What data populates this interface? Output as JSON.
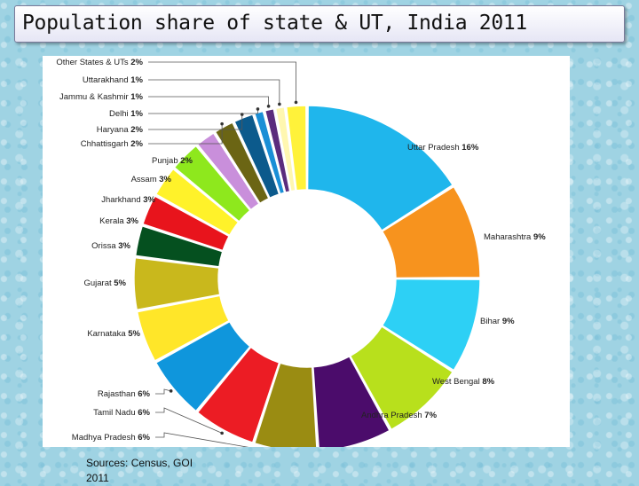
{
  "title": "Population share of state & UT, India 2011",
  "source": "Sources: Census, GOI 2011",
  "chart_data": {
    "type": "pie",
    "variant": "donut",
    "title": "Population share of state & UT, India 2011",
    "unit": "%",
    "legend": "none",
    "slices": [
      {
        "label": "Uttar Pradesh",
        "value": 16,
        "color": "#1fb6ec"
      },
      {
        "label": "Maharashtra",
        "value": 9,
        "color": "#f7931e"
      },
      {
        "label": "Bihar",
        "value": 9,
        "color": "#2dd0f5"
      },
      {
        "label": "West Bengal",
        "value": 8,
        "color": "#b8e01c"
      },
      {
        "label": "Andhra Pradesh",
        "value": 7,
        "color": "#4b0c6b"
      },
      {
        "label": "Madhya Pradesh",
        "value": 6,
        "color": "#9a8c12"
      },
      {
        "label": "Tamil Nadu",
        "value": 6,
        "color": "#ec1c24"
      },
      {
        "label": "Rajasthan",
        "value": 6,
        "color": "#0f96dc"
      },
      {
        "label": "Karnataka",
        "value": 5,
        "color": "#ffe629"
      },
      {
        "label": "Gujarat",
        "value": 5,
        "color": "#c9b81c"
      },
      {
        "label": "Orissa",
        "value": 3,
        "color": "#05501f"
      },
      {
        "label": "Kerala",
        "value": 3,
        "color": "#e8141c"
      },
      {
        "label": "Jharkhand",
        "value": 3,
        "color": "#fff22a"
      },
      {
        "label": "Assam",
        "value": 3,
        "color": "#8ee81d"
      },
      {
        "label": "Punjab",
        "value": 2,
        "color": "#c98fdb"
      },
      {
        "label": "Chhattisgarh",
        "value": 2,
        "color": "#6b6514"
      },
      {
        "label": "Haryana",
        "value": 2,
        "color": "#0c5a8c"
      },
      {
        "label": "Delhi",
        "value": 1,
        "color": "#1a8fd6"
      },
      {
        "label": "Jammu & Kashmir",
        "value": 1,
        "color": "#5b2c7d"
      },
      {
        "label": "Uttarakhand",
        "value": 1,
        "color": "#fff7b0"
      },
      {
        "label": "Other States & UTs",
        "value": 2,
        "color": "#fff23a"
      }
    ]
  }
}
